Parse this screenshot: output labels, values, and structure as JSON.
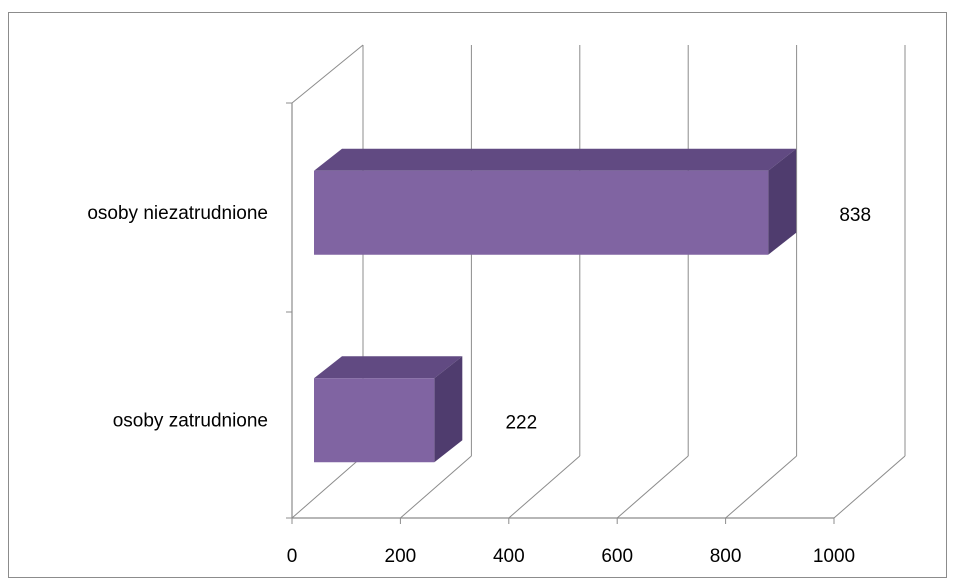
{
  "chart_data": {
    "type": "bar",
    "orientation": "horizontal",
    "style": "3d",
    "categories": [
      "osoby zatrudnione",
      "osoby niezatrudnione"
    ],
    "values": [
      222,
      838
    ],
    "data_labels": [
      "222",
      "838"
    ],
    "xlim": [
      0,
      1000
    ],
    "xticks": [
      "0",
      "200",
      "400",
      "600",
      "800",
      "1000"
    ],
    "grid": true,
    "legend": "none",
    "colors": {
      "bar_front": "#8064A2",
      "bar_top": "#614A82",
      "bar_side": "#4F3C6E",
      "grid": "#8c8c8c"
    }
  }
}
